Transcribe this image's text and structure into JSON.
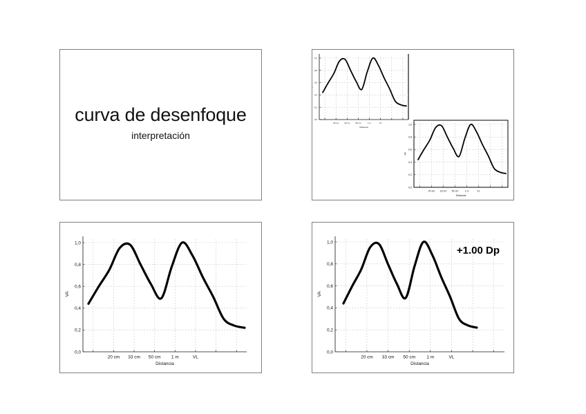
{
  "slides": {
    "title": "curva de desenfoque",
    "subtitle": "interpretación",
    "overlay_label": "+1.00 Dp"
  },
  "chart_data": [
    {
      "type": "line",
      "xlabel": "Distancia",
      "ylabel": "VA",
      "x_tick_labels": [
        "20 cm",
        "33 cm",
        "50 cm",
        "1 m",
        "VL"
      ],
      "y_tick_labels": [
        "0,0",
        "0,2",
        "0,4",
        "0,6",
        "0,8",
        "1,0"
      ],
      "ylim": [
        0,
        1.0
      ],
      "grid": true,
      "series": [
        {
          "x": [
            0,
            0.5,
            1,
            1.5,
            2,
            2.5,
            3,
            3.5,
            4,
            4.5,
            5,
            5.5,
            6,
            6.5,
            7,
            7.5
          ],
          "values": [
            0.44,
            0.6,
            0.75,
            0.95,
            0.98,
            0.8,
            0.62,
            0.49,
            0.78,
            1.0,
            0.88,
            0.68,
            0.5,
            0.3,
            0.24,
            0.22
          ]
        }
      ]
    }
  ]
}
